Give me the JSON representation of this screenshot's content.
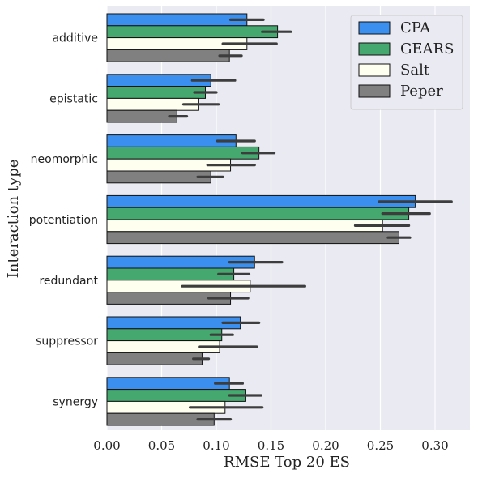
{
  "chart_data": {
    "type": "bar",
    "orientation": "horizontal",
    "xlabel": "RMSE Top 20 ES",
    "ylabel": "Interaction type",
    "xlim": [
      0,
      0.325
    ],
    "xticks": [
      "0.00",
      "0.05",
      "0.10",
      "0.15",
      "0.20",
      "0.25",
      "0.30"
    ],
    "grid": true,
    "legend_position": "top-right",
    "categories": [
      "additive",
      "epistatic",
      "neomorphic",
      "potentiation",
      "redundant",
      "suppressor",
      "synergy"
    ],
    "series": [
      {
        "name": "CPA",
        "color": "#3a8fef",
        "values": [
          0.128,
          0.095,
          0.118,
          0.282,
          0.135,
          0.122,
          0.112
        ],
        "error_low": [
          0.113,
          0.078,
          0.101,
          0.249,
          0.112,
          0.106,
          0.099
        ],
        "error_high": [
          0.143,
          0.117,
          0.135,
          0.315,
          0.16,
          0.139,
          0.124
        ]
      },
      {
        "name": "GEARS",
        "color": "#45a86e",
        "values": [
          0.156,
          0.09,
          0.139,
          0.276,
          0.116,
          0.105,
          0.127
        ],
        "error_low": [
          0.142,
          0.08,
          0.124,
          0.252,
          0.102,
          0.095,
          0.112
        ],
        "error_high": [
          0.168,
          0.1,
          0.153,
          0.295,
          0.13,
          0.115,
          0.141
        ]
      },
      {
        "name": "Salt",
        "color": "#fffff0",
        "values": [
          0.128,
          0.084,
          0.113,
          0.252,
          0.131,
          0.103,
          0.108
        ],
        "error_low": [
          0.106,
          0.07,
          0.092,
          0.227,
          0.069,
          0.085,
          0.076
        ],
        "error_high": [
          0.155,
          0.102,
          0.135,
          0.276,
          0.181,
          0.137,
          0.142
        ]
      },
      {
        "name": "Peper",
        "color": "#808080",
        "values": [
          0.112,
          0.064,
          0.095,
          0.267,
          0.113,
          0.087,
          0.098
        ],
        "error_low": [
          0.103,
          0.057,
          0.083,
          0.257,
          0.093,
          0.079,
          0.083
        ],
        "error_high": [
          0.123,
          0.073,
          0.106,
          0.277,
          0.129,
          0.093,
          0.113
        ]
      }
    ]
  }
}
